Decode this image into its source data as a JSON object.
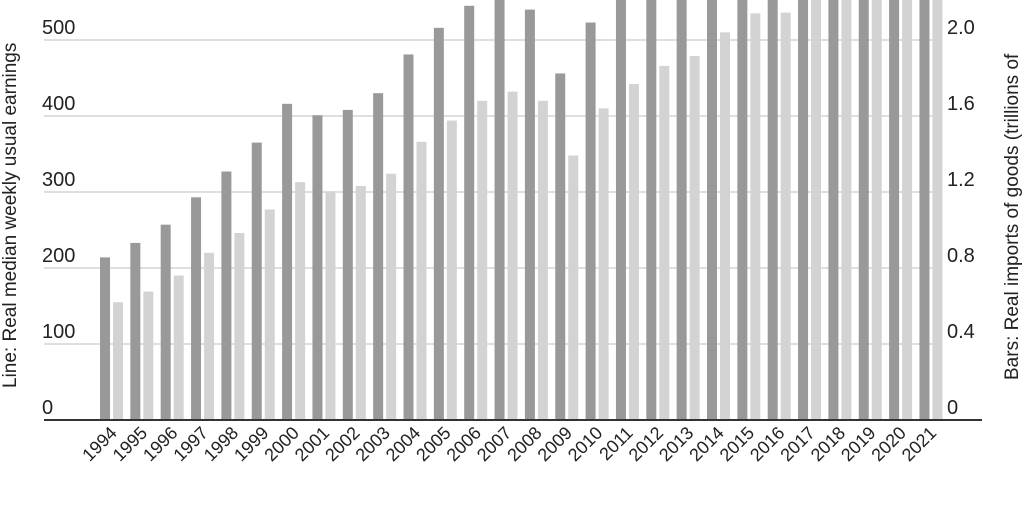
{
  "chart_data": {
    "type": "bar",
    "xlabel": "",
    "ylabel_left": "Line: Real median weekly usual earnings",
    "ylabel_right": "Bars: Real imports of goods (trillions of",
    "y_left": {
      "ticks": [
        "0",
        "100",
        "200",
        "300",
        "400",
        "500"
      ],
      "range": [
        0,
        520
      ]
    },
    "y_right": {
      "ticks": [
        "0",
        "0.4",
        "0.8",
        "1.2",
        "1.6",
        "2.0"
      ],
      "range": [
        0,
        2.08
      ]
    },
    "grid": true,
    "colors": {
      "dark": "#999999",
      "light": "#d3d3d3",
      "grid": "#cccccc",
      "axis": "#333333"
    },
    "categories": [
      "1994",
      "1995",
      "1996",
      "1997",
      "1998",
      "1999",
      "2000",
      "2001",
      "2002",
      "2003",
      "2004",
      "2005",
      "2006",
      "2007",
      "2008",
      "2009",
      "2010",
      "2011",
      "2012",
      "2013",
      "2014",
      "2015",
      "2016",
      "2017",
      "2018",
      "2019",
      "2020",
      "2021"
    ],
    "series": [
      {
        "color_key": "dark",
        "values": [
          214,
          233,
          257,
          293,
          327,
          365,
          416,
          401,
          408,
          430,
          481,
          516,
          545,
          560,
          540,
          456,
          523,
          560,
          560,
          560,
          560,
          560,
          560,
          560,
          560,
          560,
          560,
          560
        ]
      },
      {
        "color_key": "light",
        "values": [
          155,
          169,
          190,
          220,
          246,
          277,
          313,
          301,
          308,
          324,
          366,
          394,
          420,
          432,
          420,
          348,
          410,
          442,
          466,
          479,
          510,
          535,
          536,
          560,
          560,
          560,
          560,
          560
        ]
      }
    ]
  }
}
